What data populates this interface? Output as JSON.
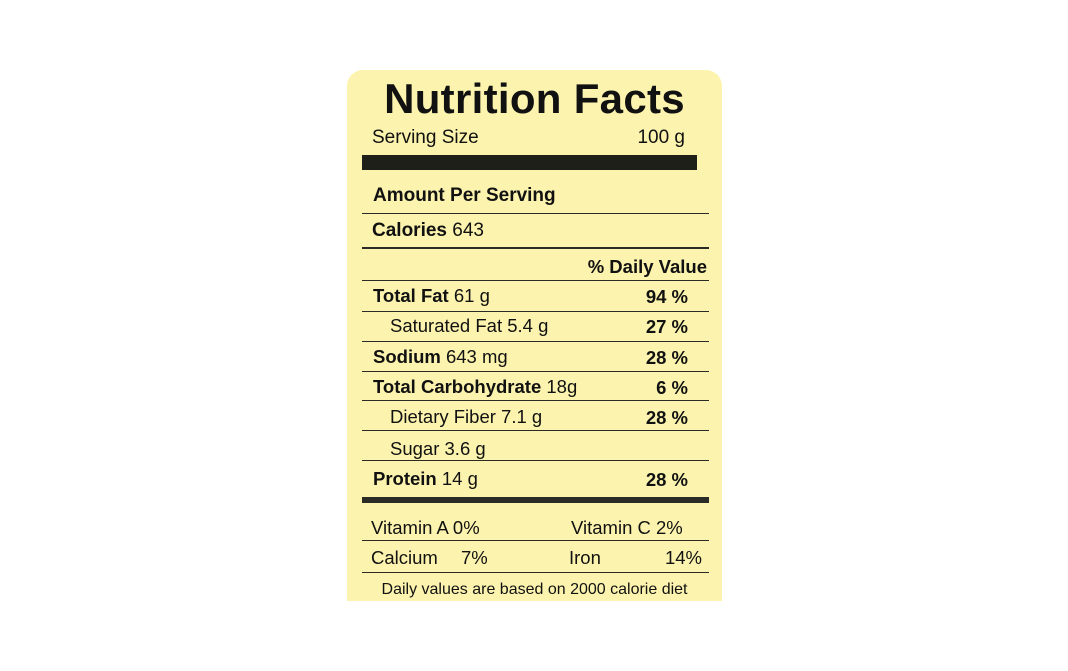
{
  "label": {
    "title": "Nutrition Facts",
    "serving_size_label": "Serving Size",
    "serving_size_value": "100 g",
    "amount_per_serving": "Amount Per Serving",
    "calories_label": "Calories",
    "calories_value": "643",
    "daily_value_header": "% Daily Value",
    "nutrients": [
      {
        "name": "Total Fat",
        "amount": "61 g",
        "pct": "94 %"
      },
      {
        "name": "Saturated Fat",
        "amount": "5.4 g",
        "pct": "27 %"
      },
      {
        "name": "Sodium",
        "amount": "643 mg",
        "pct": "28 %"
      },
      {
        "name": "Total Carbohydrate",
        "amount": "18g",
        "pct": "6 %"
      },
      {
        "name": "Dietary Fiber",
        "amount": "7.1 g",
        "pct": "28 %"
      },
      {
        "name": "Sugar",
        "amount": "3.6 g",
        "pct": ""
      },
      {
        "name": "Protein",
        "amount": "14 g",
        "pct": "28 %"
      }
    ],
    "vitamins": {
      "vitamin_a": "Vitamin A 0%",
      "vitamin_c": "Vitamin C  2%",
      "calcium_label": "Calcium",
      "calcium_value": "7%",
      "iron_label": "Iron",
      "iron_value": "14%"
    },
    "footer": "Daily values are based on 2000 calorie diet"
  },
  "colors": {
    "label_background": "#fcf4ae",
    "rule": "#1f1f1a",
    "text": "#111111"
  }
}
